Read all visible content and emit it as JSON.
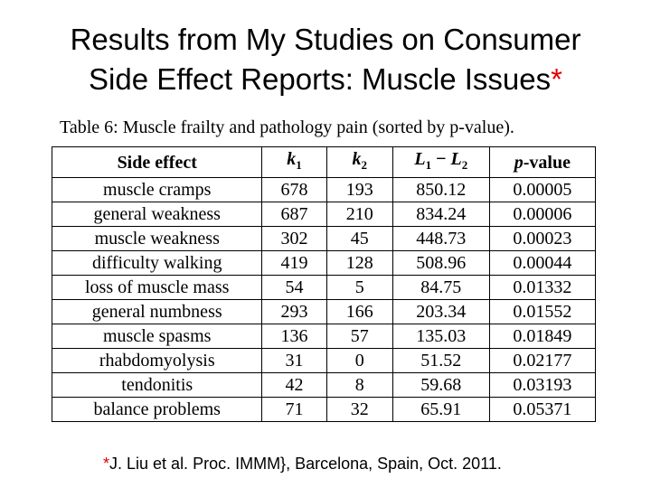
{
  "slide": {
    "title_line1": "Results from My Studies on Consumer",
    "title_line2": "Side Effect Reports: Muscle Issues",
    "title_marker": "*",
    "accent_color": "#e00000"
  },
  "table": {
    "caption": "Table 6: Muscle frailty and pathology pain (sorted by p-value).",
    "headers": {
      "side_effect": "Side effect",
      "k1_base": "k",
      "k1_sub": "1",
      "k2_base": "k",
      "k2_sub": "2",
      "l1": "L",
      "l1_sub": "1",
      "minus": " − ",
      "l2": "L",
      "l2_sub": "2",
      "p_prefix": "p",
      "p_suffix": "-value"
    },
    "rows": [
      {
        "effect": "muscle cramps",
        "k1": "678",
        "k2": "193",
        "diff": "850.12",
        "p": "0.00005"
      },
      {
        "effect": "general weakness",
        "k1": "687",
        "k2": "210",
        "diff": "834.24",
        "p": "0.00006"
      },
      {
        "effect": "muscle weakness",
        "k1": "302",
        "k2": "45",
        "diff": "448.73",
        "p": "0.00023"
      },
      {
        "effect": "difficulty walking",
        "k1": "419",
        "k2": "128",
        "diff": "508.96",
        "p": "0.00044"
      },
      {
        "effect": "loss of muscle mass",
        "k1": "54",
        "k2": "5",
        "diff": "84.75",
        "p": "0.01332"
      },
      {
        "effect": "general numbness",
        "k1": "293",
        "k2": "166",
        "diff": "203.34",
        "p": "0.01552"
      },
      {
        "effect": "muscle spasms",
        "k1": "136",
        "k2": "57",
        "diff": "135.03",
        "p": "0.01849"
      },
      {
        "effect": "rhabdomyolysis",
        "k1": "31",
        "k2": "0",
        "diff": "51.52",
        "p": "0.02177"
      },
      {
        "effect": "tendonitis",
        "k1": "42",
        "k2": "8",
        "diff": "59.68",
        "p": "0.03193"
      },
      {
        "effect": "balance problems",
        "k1": "71",
        "k2": "32",
        "diff": "65.91",
        "p": "0.05371"
      }
    ]
  },
  "footnote": {
    "marker": "*",
    "text": "J. Liu et al. Proc. IMMM}, Barcelona, Spain, Oct. 2011."
  }
}
